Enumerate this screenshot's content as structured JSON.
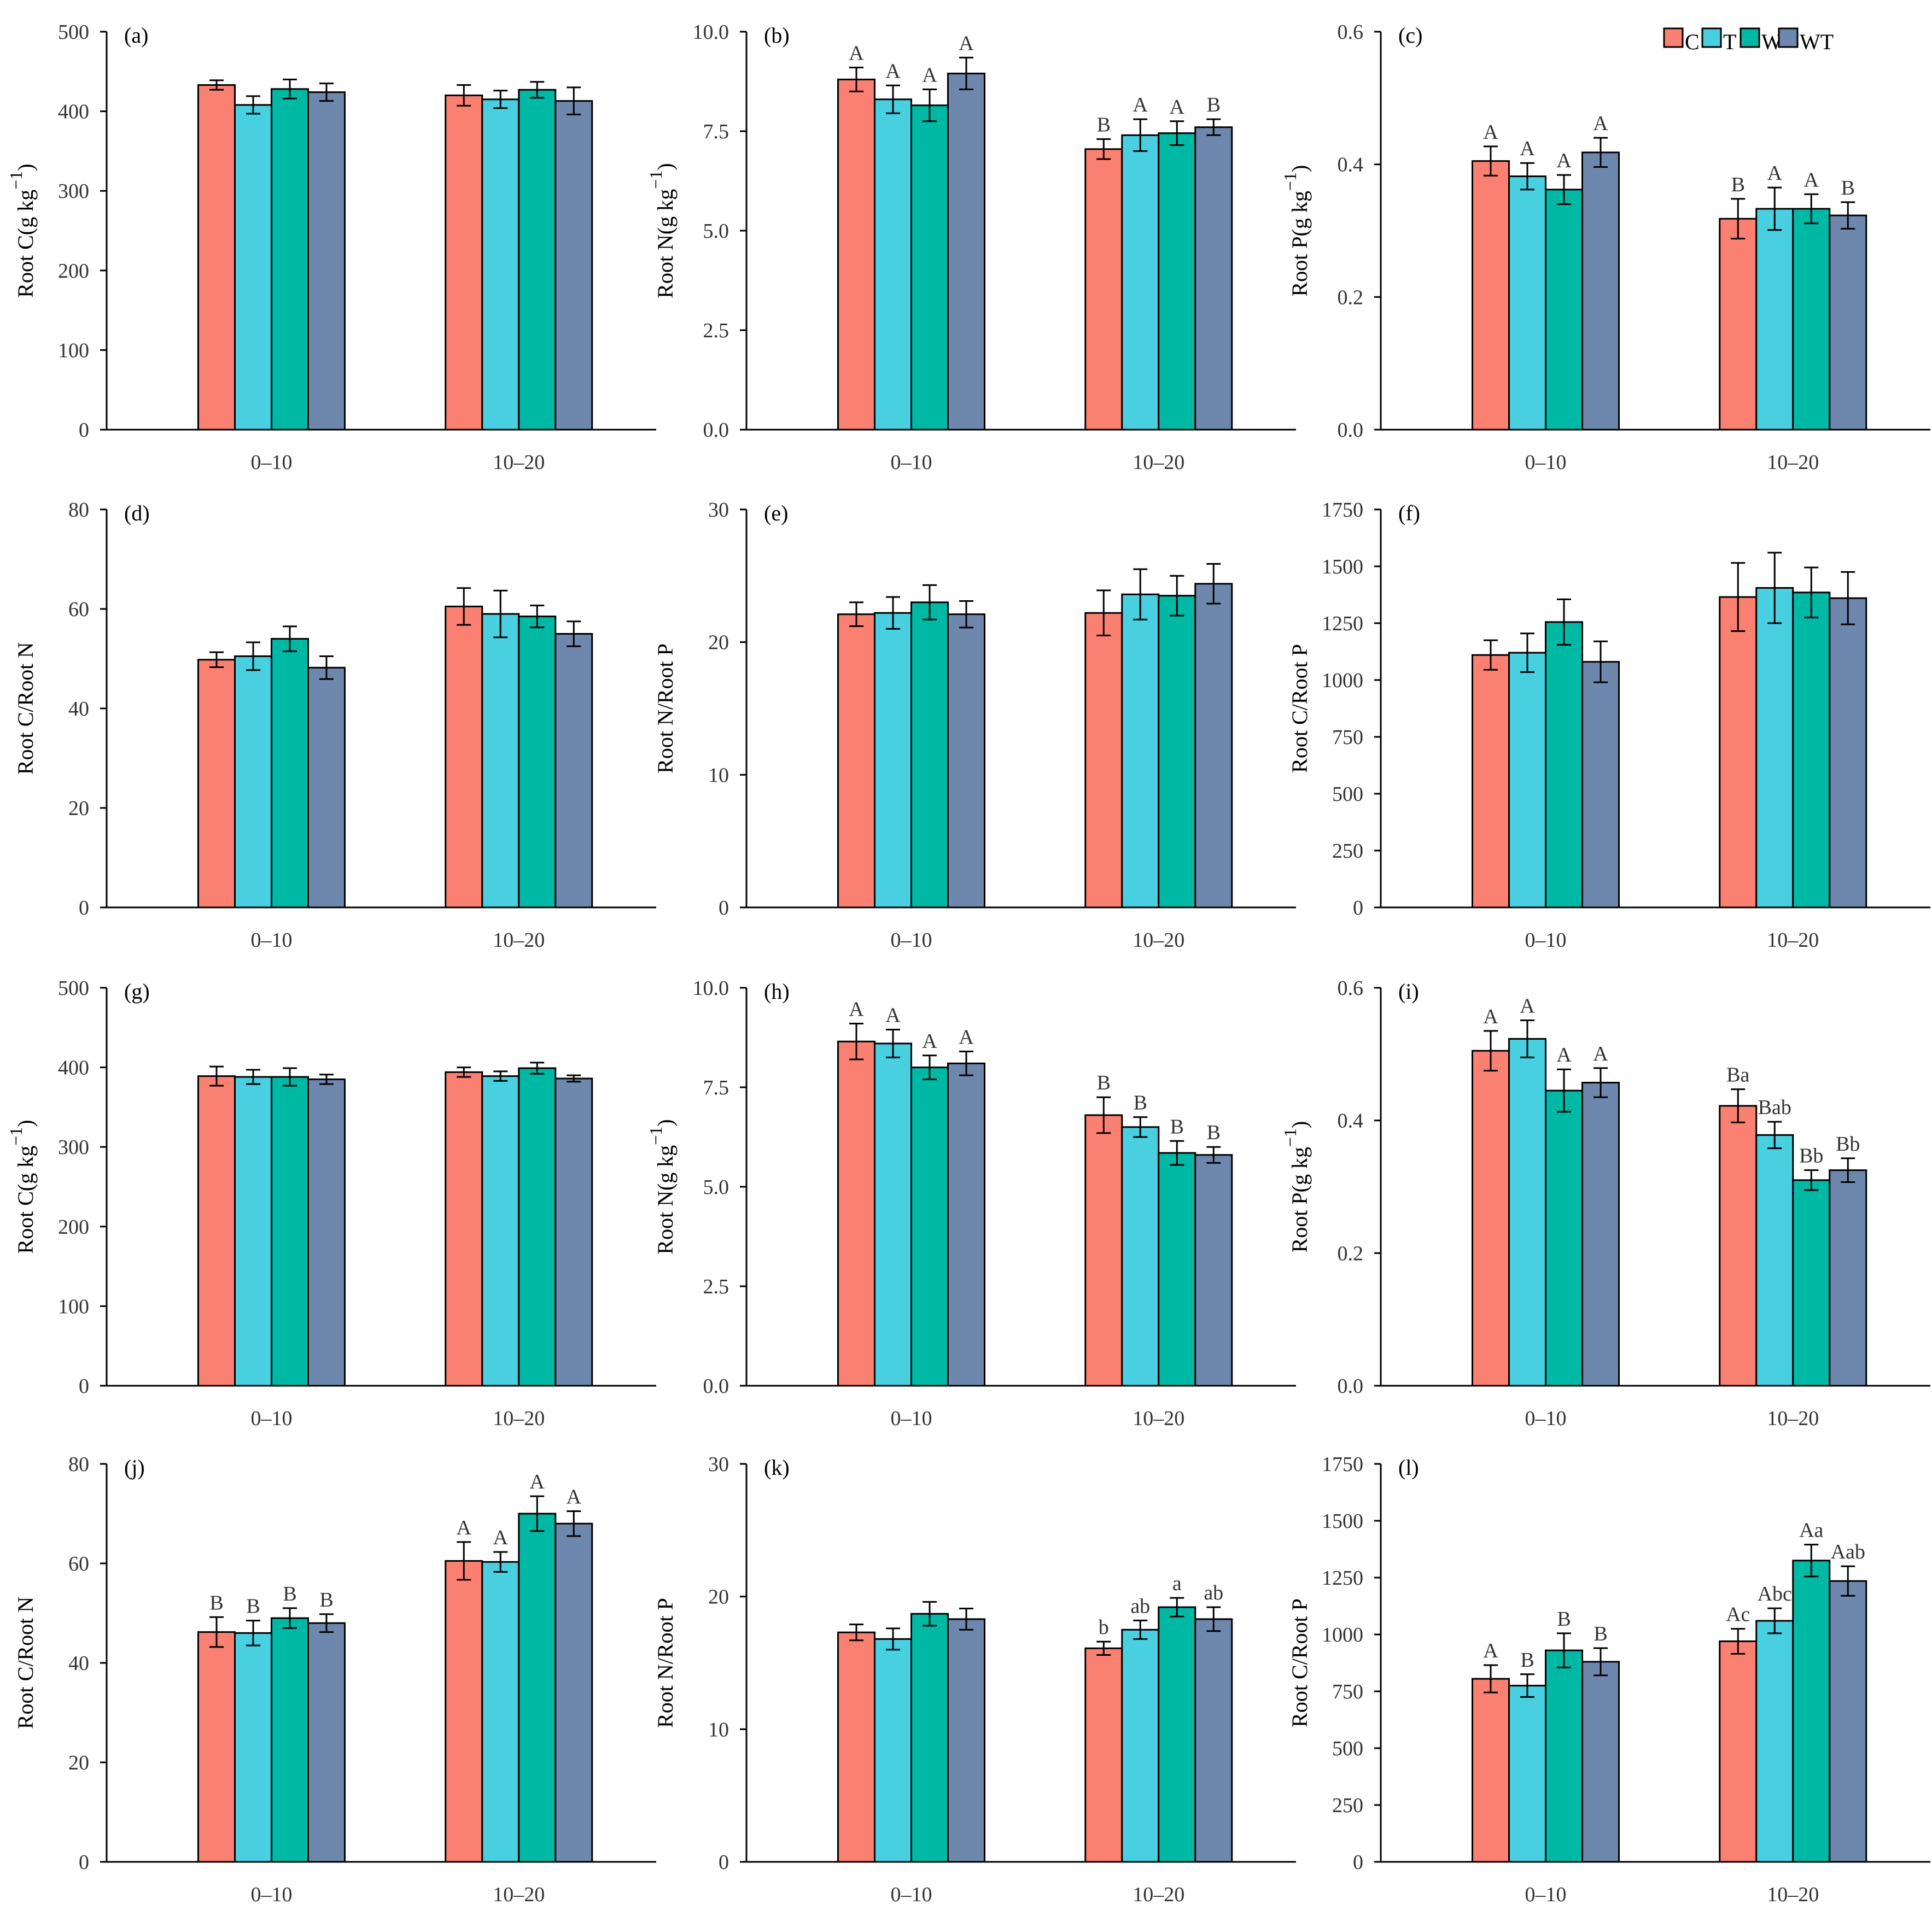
{
  "legend": {
    "items": [
      {
        "key": "C",
        "label": "C",
        "color": "#fa8072"
      },
      {
        "key": "T",
        "label": "T",
        "color": "#48cfe0"
      },
      {
        "key": "W",
        "label": "W",
        "color": "#00b9a5"
      },
      {
        "key": "WT",
        "label": "WT",
        "color": "#6e87ad"
      }
    ]
  },
  "chart_data": [
    {
      "type": "bar",
      "panel_label": "(a)",
      "ylabel": "Root C(g kg",
      "ylabel_sup": "−1",
      "ylabel_close": ")",
      "categories": [
        "0–10",
        "10–20"
      ],
      "ylim": [
        0,
        500
      ],
      "yticks": [
        0,
        100,
        200,
        300,
        400,
        500
      ],
      "ytick_labels": [
        "0",
        "100",
        "200",
        "300",
        "400",
        "500"
      ],
      "series": [
        {
          "name": "C",
          "values": [
            433,
            420
          ],
          "errors": [
            6,
            13
          ],
          "letters": [
            "",
            ""
          ]
        },
        {
          "name": "T",
          "values": [
            408,
            415
          ],
          "errors": [
            11,
            11
          ],
          "letters": [
            "",
            ""
          ]
        },
        {
          "name": "W",
          "values": [
            428,
            427
          ],
          "errors": [
            12,
            10
          ],
          "letters": [
            "",
            ""
          ]
        },
        {
          "name": "WT",
          "values": [
            424,
            413
          ],
          "errors": [
            11,
            17
          ],
          "letters": [
            "",
            ""
          ]
        }
      ]
    },
    {
      "type": "bar",
      "panel_label": "(b)",
      "ylabel": "Root N(g kg",
      "ylabel_sup": "−1",
      "ylabel_close": ")",
      "categories": [
        "0–10",
        "10–20"
      ],
      "ylim": [
        0,
        10
      ],
      "yticks": [
        0,
        2.5,
        5,
        7.5,
        10
      ],
      "ytick_labels": [
        "0.0",
        "2.5",
        "5.0",
        "7.5",
        "10.0"
      ],
      "series": [
        {
          "name": "C",
          "values": [
            8.8,
            7.05
          ],
          "errors": [
            0.3,
            0.25
          ],
          "letters": [
            "A",
            "B"
          ]
        },
        {
          "name": "T",
          "values": [
            8.3,
            7.4
          ],
          "errors": [
            0.35,
            0.4
          ],
          "letters": [
            "A",
            "A"
          ]
        },
        {
          "name": "W",
          "values": [
            8.15,
            7.45
          ],
          "errors": [
            0.4,
            0.3
          ],
          "letters": [
            "A",
            "A"
          ]
        },
        {
          "name": "WT",
          "values": [
            8.95,
            7.6
          ],
          "errors": [
            0.4,
            0.2
          ],
          "letters": [
            "A",
            "B"
          ]
        }
      ]
    },
    {
      "type": "bar",
      "panel_label": "(c)",
      "ylabel": "Root P(g kg",
      "ylabel_sup": "−1",
      "ylabel_close": ")",
      "categories": [
        "0–10",
        "10–20"
      ],
      "ylim": [
        0,
        0.6
      ],
      "yticks": [
        0,
        0.2,
        0.4,
        0.6
      ],
      "ytick_labels": [
        "0.0",
        "0.2",
        "0.4",
        "0.6"
      ],
      "series": [
        {
          "name": "C",
          "values": [
            0.405,
            0.318
          ],
          "errors": [
            0.022,
            0.03
          ],
          "letters": [
            "A",
            "B"
          ]
        },
        {
          "name": "T",
          "values": [
            0.382,
            0.333
          ],
          "errors": [
            0.02,
            0.032
          ],
          "letters": [
            "A",
            "A"
          ]
        },
        {
          "name": "W",
          "values": [
            0.362,
            0.333
          ],
          "errors": [
            0.022,
            0.022
          ],
          "letters": [
            "A",
            "A"
          ]
        },
        {
          "name": "WT",
          "values": [
            0.418,
            0.323
          ],
          "errors": [
            0.022,
            0.02
          ],
          "letters": [
            "A",
            "B"
          ]
        }
      ]
    },
    {
      "type": "bar",
      "panel_label": "(d)",
      "ylabel": "Root C/Root N",
      "ylabel_sup": "",
      "ylabel_close": "",
      "categories": [
        "0–10",
        "10–20"
      ],
      "ylim": [
        0,
        80
      ],
      "yticks": [
        0,
        20,
        40,
        60,
        80
      ],
      "ytick_labels": [
        "0",
        "20",
        "40",
        "60",
        "80"
      ],
      "series": [
        {
          "name": "C",
          "values": [
            49.8,
            60.5
          ],
          "errors": [
            1.5,
            3.7
          ],
          "letters": [
            "",
            ""
          ]
        },
        {
          "name": "T",
          "values": [
            50.5,
            59
          ],
          "errors": [
            2.8,
            4.7
          ],
          "letters": [
            "",
            ""
          ]
        },
        {
          "name": "W",
          "values": [
            54,
            58.5
          ],
          "errors": [
            2.5,
            2.2
          ],
          "letters": [
            "",
            ""
          ]
        },
        {
          "name": "WT",
          "values": [
            48.2,
            55
          ],
          "errors": [
            2.3,
            2.5
          ],
          "letters": [
            "",
            ""
          ]
        }
      ]
    },
    {
      "type": "bar",
      "panel_label": "(e)",
      "ylabel": "Root N/Root P",
      "ylabel_sup": "",
      "ylabel_close": "",
      "categories": [
        "0–10",
        "10–20"
      ],
      "ylim": [
        0,
        30
      ],
      "yticks": [
        0,
        10,
        20,
        30
      ],
      "ytick_labels": [
        "0",
        "10",
        "20",
        "30"
      ],
      "series": [
        {
          "name": "C",
          "values": [
            22.1,
            22.2
          ],
          "errors": [
            0.9,
            1.7
          ],
          "letters": [
            "",
            ""
          ]
        },
        {
          "name": "T",
          "values": [
            22.2,
            23.6
          ],
          "errors": [
            1.2,
            1.9
          ],
          "letters": [
            "",
            ""
          ]
        },
        {
          "name": "W",
          "values": [
            23,
            23.5
          ],
          "errors": [
            1.3,
            1.5
          ],
          "letters": [
            "",
            ""
          ]
        },
        {
          "name": "WT",
          "values": [
            22.1,
            24.4
          ],
          "errors": [
            1,
            1.5
          ],
          "letters": [
            "",
            ""
          ]
        }
      ]
    },
    {
      "type": "bar",
      "panel_label": "(f)",
      "ylabel": "Root C/Root P",
      "ylabel_sup": "",
      "ylabel_close": "",
      "categories": [
        "0–10",
        "10–20"
      ],
      "ylim": [
        0,
        1750
      ],
      "yticks": [
        0,
        250,
        500,
        750,
        1000,
        1250,
        1500,
        1750
      ],
      "ytick_labels": [
        "0",
        "250",
        "500",
        "750",
        "1000",
        "1250",
        "1500",
        "1750"
      ],
      "series": [
        {
          "name": "C",
          "values": [
            1110,
            1365
          ],
          "errors": [
            65,
            150
          ],
          "letters": [
            "",
            ""
          ]
        },
        {
          "name": "T",
          "values": [
            1120,
            1405
          ],
          "errors": [
            85,
            155
          ],
          "letters": [
            "",
            ""
          ]
        },
        {
          "name": "W",
          "values": [
            1255,
            1385
          ],
          "errors": [
            100,
            110
          ],
          "letters": [
            "",
            ""
          ]
        },
        {
          "name": "WT",
          "values": [
            1080,
            1360
          ],
          "errors": [
            90,
            115
          ],
          "letters": [
            "",
            ""
          ]
        }
      ]
    },
    {
      "type": "bar",
      "panel_label": "(g)",
      "ylabel": "Root C(g kg",
      "ylabel_sup": "−1",
      "ylabel_close": ")",
      "categories": [
        "0–10",
        "10–20"
      ],
      "ylim": [
        0,
        500
      ],
      "yticks": [
        0,
        100,
        200,
        300,
        400,
        500
      ],
      "ytick_labels": [
        "0",
        "100",
        "200",
        "300",
        "400",
        "500"
      ],
      "series": [
        {
          "name": "C",
          "values": [
            389,
            394
          ],
          "errors": [
            12,
            6
          ],
          "letters": [
            "",
            ""
          ]
        },
        {
          "name": "T",
          "values": [
            388,
            389
          ],
          "errors": [
            9,
            6
          ],
          "letters": [
            "",
            ""
          ]
        },
        {
          "name": "W",
          "values": [
            388,
            399
          ],
          "errors": [
            11,
            7
          ],
          "letters": [
            "",
            ""
          ]
        },
        {
          "name": "WT",
          "values": [
            385,
            386
          ],
          "errors": [
            6,
            4
          ],
          "letters": [
            "",
            ""
          ]
        }
      ]
    },
    {
      "type": "bar",
      "panel_label": "(h)",
      "ylabel": "Root N(g kg",
      "ylabel_sup": "−1",
      "ylabel_close": ")",
      "categories": [
        "0–10",
        "10–20"
      ],
      "ylim": [
        0,
        10
      ],
      "yticks": [
        0,
        2.5,
        5,
        7.5,
        10
      ],
      "ytick_labels": [
        "0.0",
        "2.5",
        "5.0",
        "7.5",
        "10.0"
      ],
      "series": [
        {
          "name": "C",
          "values": [
            8.65,
            6.8
          ],
          "errors": [
            0.45,
            0.45
          ],
          "letters": [
            "A",
            "B"
          ]
        },
        {
          "name": "T",
          "values": [
            8.6,
            6.5
          ],
          "errors": [
            0.35,
            0.25
          ],
          "letters": [
            "A",
            "B"
          ]
        },
        {
          "name": "W",
          "values": [
            8.0,
            5.85
          ],
          "errors": [
            0.3,
            0.3
          ],
          "letters": [
            "A",
            "B"
          ]
        },
        {
          "name": "WT",
          "values": [
            8.1,
            5.8
          ],
          "errors": [
            0.3,
            0.2
          ],
          "letters": [
            "A",
            "B"
          ]
        }
      ]
    },
    {
      "type": "bar",
      "panel_label": "(i)",
      "ylabel": "Root P(g kg",
      "ylabel_sup": "−1",
      "ylabel_close": ")",
      "categories": [
        "0–10",
        "10–20"
      ],
      "ylim": [
        0,
        0.6
      ],
      "yticks": [
        0,
        0.2,
        0.4,
        0.6
      ],
      "ytick_labels": [
        "0.0",
        "0.2",
        "0.4",
        "0.6"
      ],
      "series": [
        {
          "name": "C",
          "values": [
            0.505,
            0.422
          ],
          "errors": [
            0.03,
            0.025
          ],
          "letters": [
            "A",
            "Ba"
          ]
        },
        {
          "name": "T",
          "values": [
            0.523,
            0.378
          ],
          "errors": [
            0.028,
            0.02
          ],
          "letters": [
            "A",
            "Bab"
          ]
        },
        {
          "name": "W",
          "values": [
            0.445,
            0.31
          ],
          "errors": [
            0.032,
            0.015
          ],
          "letters": [
            "A",
            "Bb"
          ]
        },
        {
          "name": "WT",
          "values": [
            0.457,
            0.325
          ],
          "errors": [
            0.022,
            0.018
          ],
          "letters": [
            "A",
            "Bb"
          ]
        }
      ]
    },
    {
      "type": "bar",
      "panel_label": "(j)",
      "ylabel": "Root C/Root N",
      "ylabel_sup": "",
      "ylabel_close": "",
      "categories": [
        "0–10",
        "10–20"
      ],
      "ylim": [
        0,
        80
      ],
      "yticks": [
        0,
        20,
        40,
        60,
        80
      ],
      "ytick_labels": [
        "0",
        "20",
        "40",
        "60",
        "80"
      ],
      "series": [
        {
          "name": "C",
          "values": [
            46.2,
            60.5
          ],
          "errors": [
            3,
            3.8
          ],
          "letters": [
            "B",
            "A"
          ]
        },
        {
          "name": "T",
          "values": [
            46,
            60.3
          ],
          "errors": [
            2.5,
            2
          ],
          "letters": [
            "B",
            "A"
          ]
        },
        {
          "name": "W",
          "values": [
            49,
            70
          ],
          "errors": [
            2,
            3.5
          ],
          "letters": [
            "B",
            "A"
          ]
        },
        {
          "name": "WT",
          "values": [
            48,
            68
          ],
          "errors": [
            1.8,
            2.5
          ],
          "letters": [
            "B",
            "A"
          ]
        }
      ]
    },
    {
      "type": "bar",
      "panel_label": "(k)",
      "ylabel": "Root N/Root P",
      "ylabel_sup": "",
      "ylabel_close": "",
      "categories": [
        "0–10",
        "10–20"
      ],
      "ylim": [
        0,
        30
      ],
      "yticks": [
        0,
        10,
        20,
        30
      ],
      "ytick_labels": [
        "0",
        "10",
        "20",
        "30"
      ],
      "series": [
        {
          "name": "C",
          "values": [
            17.3,
            16.1
          ],
          "errors": [
            0.6,
            0.5
          ],
          "letters": [
            "",
            "b"
          ]
        },
        {
          "name": "T",
          "values": [
            16.8,
            17.5
          ],
          "errors": [
            0.8,
            0.7
          ],
          "letters": [
            "",
            "ab"
          ]
        },
        {
          "name": "W",
          "values": [
            18.7,
            19.2
          ],
          "errors": [
            0.9,
            0.7
          ],
          "letters": [
            "",
            "a"
          ]
        },
        {
          "name": "WT",
          "values": [
            18.3,
            18.3
          ],
          "errors": [
            0.8,
            0.9
          ],
          "letters": [
            "",
            "ab"
          ]
        }
      ]
    },
    {
      "type": "bar",
      "panel_label": "(l)",
      "ylabel": "Root C/Root P",
      "ylabel_sup": "",
      "ylabel_close": "",
      "categories": [
        "0–10",
        "10–20"
      ],
      "ylim": [
        0,
        1750
      ],
      "yticks": [
        0,
        250,
        500,
        750,
        1000,
        1250,
        1500,
        1750
      ],
      "ytick_labels": [
        "0",
        "250",
        "500",
        "750",
        "1000",
        "1250",
        "1500",
        "1750"
      ],
      "series": [
        {
          "name": "C",
          "values": [
            805,
            970
          ],
          "errors": [
            60,
            55
          ],
          "letters": [
            "A",
            "Ac"
          ]
        },
        {
          "name": "T",
          "values": [
            775,
            1060
          ],
          "errors": [
            50,
            55
          ],
          "letters": [
            "B",
            "Abc"
          ]
        },
        {
          "name": "W",
          "values": [
            930,
            1325
          ],
          "errors": [
            75,
            70
          ],
          "letters": [
            "B",
            "Aa"
          ]
        },
        {
          "name": "WT",
          "values": [
            880,
            1235
          ],
          "errors": [
            60,
            65
          ],
          "letters": [
            "B",
            "Aab"
          ]
        }
      ]
    }
  ]
}
